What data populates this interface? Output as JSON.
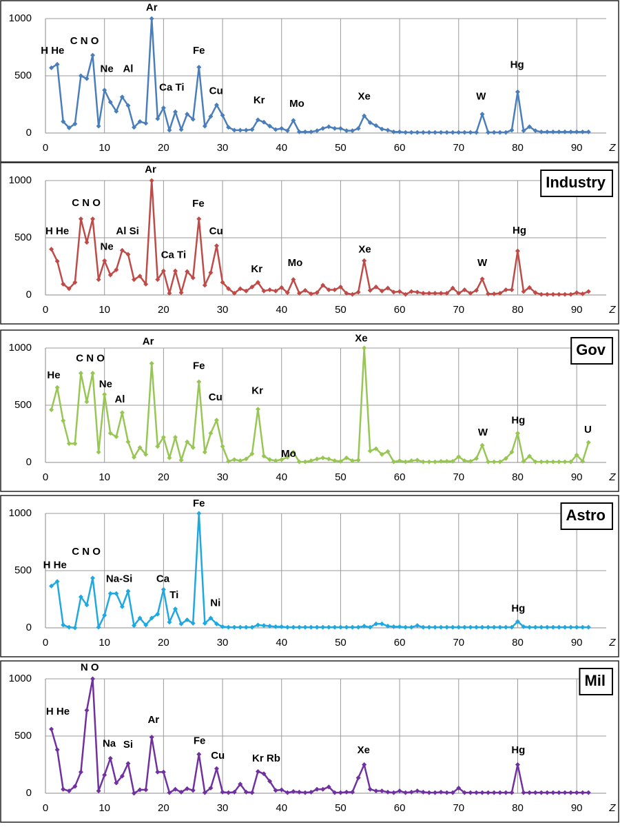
{
  "chart_data": [
    {
      "type": "line",
      "color": "#4a7ebb",
      "xlabel": "Z",
      "xlim": [
        0,
        95
      ],
      "xticks": [
        0,
        10,
        20,
        30,
        40,
        50,
        60,
        70,
        80,
        90
      ],
      "ylim": [
        0,
        1000
      ],
      "yticks": [
        0,
        500,
        1000
      ],
      "grid": true,
      "x": [
        1,
        2,
        3,
        4,
        5,
        6,
        7,
        8,
        9,
        10,
        11,
        12,
        13,
        14,
        15,
        16,
        17,
        18,
        19,
        20,
        21,
        22,
        23,
        24,
        25,
        26,
        27,
        28,
        29,
        30,
        31,
        32,
        33,
        34,
        35,
        36,
        37,
        38,
        39,
        40,
        41,
        42,
        43,
        44,
        45,
        46,
        47,
        48,
        49,
        50,
        51,
        52,
        53,
        54,
        55,
        56,
        57,
        58,
        59,
        60,
        61,
        62,
        63,
        64,
        65,
        66,
        67,
        68,
        69,
        70,
        71,
        72,
        73,
        74,
        75,
        76,
        77,
        78,
        79,
        80,
        81,
        82,
        83,
        84,
        85,
        86,
        87,
        88,
        89,
        90,
        91,
        92
      ],
      "values": [
        570,
        600,
        100,
        45,
        80,
        500,
        475,
        680,
        60,
        375,
        270,
        190,
        315,
        240,
        50,
        100,
        85,
        1000,
        125,
        220,
        25,
        185,
        30,
        165,
        120,
        575,
        60,
        145,
        245,
        155,
        50,
        25,
        25,
        25,
        30,
        115,
        95,
        60,
        30,
        40,
        20,
        110,
        10,
        10,
        10,
        20,
        40,
        55,
        40,
        40,
        20,
        20,
        40,
        150,
        90,
        65,
        35,
        25,
        10,
        10,
        5,
        5,
        5,
        5,
        5,
        5,
        5,
        5,
        5,
        5,
        5,
        5,
        5,
        165,
        5,
        5,
        5,
        5,
        25,
        360,
        20,
        55,
        20,
        10,
        10,
        10,
        10,
        10,
        10,
        10,
        10,
        10
      ],
      "annotations": [
        {
          "text": "H He",
          "x": 1.2,
          "y": 716
        },
        {
          "text": "C N O",
          "x": 6.6,
          "y": 802
        },
        {
          "text": "Ar",
          "x": 18,
          "y": 1093
        },
        {
          "text": "Ne",
          "x": 10.4,
          "y": 556
        },
        {
          "text": "Al",
          "x": 14,
          "y": 556
        },
        {
          "text": "Fe",
          "x": 26,
          "y": 716
        },
        {
          "text": "Ca Ti",
          "x": 21.4,
          "y": 395
        },
        {
          "text": "Cu",
          "x": 28.9,
          "y": 364
        },
        {
          "text": "Kr",
          "x": 36.2,
          "y": 284
        },
        {
          "text": "Mo",
          "x": 42.6,
          "y": 253
        },
        {
          "text": "Xe",
          "x": 54,
          "y": 315
        },
        {
          "text": "W",
          "x": 73.8,
          "y": 315
        },
        {
          "text": "Hg",
          "x": 79.9,
          "y": 593
        }
      ]
    },
    {
      "type": "line",
      "title": "Industry",
      "color": "#be4b48",
      "xlabel": "Z",
      "xlim": [
        0,
        95
      ],
      "xticks": [
        0,
        10,
        20,
        30,
        40,
        50,
        60,
        70,
        80,
        90
      ],
      "ylim": [
        0,
        1000
      ],
      "yticks": [
        0,
        500,
        1000
      ],
      "grid": true,
      "x": [
        1,
        2,
        3,
        4,
        5,
        6,
        7,
        8,
        9,
        10,
        11,
        12,
        13,
        14,
        15,
        16,
        17,
        18,
        19,
        20,
        21,
        22,
        23,
        24,
        25,
        26,
        27,
        28,
        29,
        30,
        31,
        32,
        33,
        34,
        35,
        36,
        37,
        38,
        39,
        40,
        41,
        42,
        43,
        44,
        45,
        46,
        47,
        48,
        49,
        50,
        51,
        52,
        53,
        54,
        55,
        56,
        57,
        58,
        59,
        60,
        61,
        62,
        63,
        64,
        65,
        66,
        67,
        68,
        69,
        70,
        71,
        72,
        73,
        74,
        75,
        76,
        77,
        78,
        79,
        80,
        81,
        82,
        83,
        84,
        85,
        86,
        87,
        88,
        89,
        90,
        91,
        92
      ],
      "values": [
        400,
        295,
        95,
        55,
        110,
        665,
        460,
        665,
        135,
        300,
        175,
        220,
        390,
        355,
        135,
        165,
        95,
        1000,
        135,
        210,
        15,
        210,
        20,
        205,
        150,
        665,
        85,
        195,
        430,
        110,
        55,
        15,
        55,
        35,
        70,
        110,
        35,
        45,
        35,
        65,
        20,
        135,
        15,
        40,
        10,
        20,
        85,
        45,
        45,
        70,
        15,
        5,
        25,
        300,
        40,
        70,
        35,
        60,
        25,
        30,
        5,
        30,
        25,
        15,
        15,
        15,
        15,
        15,
        60,
        15,
        45,
        15,
        40,
        140,
        10,
        10,
        15,
        45,
        45,
        385,
        30,
        65,
        20,
        5,
        5,
        5,
        5,
        5,
        5,
        20,
        10,
        30
      ],
      "annotations": [
        {
          "text": "H He",
          "x": 2,
          "y": 553
        },
        {
          "text": "C N O",
          "x": 6.9,
          "y": 800
        },
        {
          "text": "Ar",
          "x": 17.8,
          "y": 1094
        },
        {
          "text": "Al Si",
          "x": 13.9,
          "y": 553
        },
        {
          "text": "Ne",
          "x": 10.4,
          "y": 418
        },
        {
          "text": "Fe",
          "x": 25.9,
          "y": 794
        },
        {
          "text": "Cu",
          "x": 28.9,
          "y": 553
        },
        {
          "text": "Ca Ti",
          "x": 21.7,
          "y": 347
        },
        {
          "text": "Kr",
          "x": 35.8,
          "y": 224
        },
        {
          "text": "Mo",
          "x": 42.3,
          "y": 276
        },
        {
          "text": "Xe",
          "x": 54.1,
          "y": 394
        },
        {
          "text": "W",
          "x": 74,
          "y": 276
        },
        {
          "text": "Hg",
          "x": 80.3,
          "y": 559
        }
      ]
    },
    {
      "type": "line",
      "title": "Gov",
      "color": "#98c654",
      "xlabel": "Z",
      "xlim": [
        0,
        95
      ],
      "xticks": [
        0,
        10,
        20,
        30,
        40,
        50,
        60,
        70,
        80,
        90
      ],
      "ylim": [
        0,
        1000
      ],
      "yticks": [
        0,
        500,
        1000
      ],
      "grid": true,
      "x": [
        1,
        2,
        3,
        4,
        5,
        6,
        7,
        8,
        9,
        10,
        11,
        12,
        13,
        14,
        15,
        16,
        17,
        18,
        19,
        20,
        21,
        22,
        23,
        24,
        25,
        26,
        27,
        28,
        29,
        30,
        31,
        32,
        33,
        34,
        35,
        36,
        37,
        38,
        39,
        40,
        41,
        42,
        43,
        44,
        45,
        46,
        47,
        48,
        49,
        50,
        51,
        52,
        53,
        54,
        55,
        56,
        57,
        58,
        59,
        60,
        61,
        62,
        63,
        64,
        65,
        66,
        67,
        68,
        69,
        70,
        71,
        72,
        73,
        74,
        75,
        76,
        77,
        78,
        79,
        80,
        81,
        82,
        83,
        84,
        85,
        86,
        87,
        88,
        89,
        90,
        91,
        92
      ],
      "values": [
        460,
        655,
        365,
        165,
        165,
        780,
        530,
        780,
        90,
        595,
        255,
        225,
        435,
        180,
        45,
        130,
        70,
        865,
        140,
        220,
        40,
        220,
        20,
        180,
        130,
        705,
        90,
        255,
        370,
        140,
        10,
        25,
        15,
        30,
        75,
        465,
        55,
        25,
        15,
        25,
        45,
        90,
        5,
        5,
        15,
        30,
        40,
        30,
        15,
        10,
        40,
        15,
        20,
        1000,
        100,
        120,
        70,
        95,
        5,
        15,
        5,
        15,
        20,
        5,
        5,
        5,
        10,
        10,
        10,
        50,
        15,
        10,
        35,
        150,
        5,
        5,
        5,
        35,
        90,
        255,
        10,
        55,
        5,
        5,
        5,
        5,
        5,
        5,
        5,
        65,
        10,
        175
      ],
      "annotations": [
        {
          "text": "He",
          "x": 1.4,
          "y": 759
        },
        {
          "text": "C N O",
          "x": 7.6,
          "y": 906
        },
        {
          "text": "Ar",
          "x": 17.4,
          "y": 1053
        },
        {
          "text": "Ne",
          "x": 10.2,
          "y": 682
        },
        {
          "text": "Al",
          "x": 12.6,
          "y": 547
        },
        {
          "text": "Fe",
          "x": 26,
          "y": 841
        },
        {
          "text": "Cu",
          "x": 28.8,
          "y": 565
        },
        {
          "text": "Kr",
          "x": 35.9,
          "y": 624
        },
        {
          "text": "Mo",
          "x": 41.2,
          "y": 71
        },
        {
          "text": "Xe",
          "x": 53.5,
          "y": 1082
        },
        {
          "text": "W",
          "x": 74.1,
          "y": 259
        },
        {
          "text": "Hg",
          "x": 80.1,
          "y": 365
        },
        {
          "text": "U",
          "x": 91.9,
          "y": 282
        }
      ]
    },
    {
      "type": "line",
      "title": "Astro",
      "color": "#1fa8e0",
      "xlabel": "Z",
      "xlim": [
        0,
        95
      ],
      "xticks": [
        0,
        10,
        20,
        30,
        40,
        50,
        60,
        70,
        80,
        90
      ],
      "ylim": [
        0,
        1000
      ],
      "yticks": [
        0,
        500,
        1000
      ],
      "grid": true,
      "x": [
        1,
        2,
        3,
        4,
        5,
        6,
        7,
        8,
        9,
        10,
        11,
        12,
        13,
        14,
        15,
        16,
        17,
        18,
        19,
        20,
        21,
        22,
        23,
        24,
        25,
        26,
        27,
        28,
        29,
        30,
        31,
        32,
        33,
        34,
        35,
        36,
        37,
        38,
        39,
        40,
        41,
        42,
        43,
        44,
        45,
        46,
        47,
        48,
        49,
        50,
        51,
        52,
        53,
        54,
        55,
        56,
        57,
        58,
        59,
        60,
        61,
        62,
        63,
        64,
        65,
        66,
        67,
        68,
        69,
        70,
        71,
        72,
        73,
        74,
        75,
        76,
        77,
        78,
        79,
        80,
        81,
        82,
        83,
        84,
        85,
        86,
        87,
        88,
        89,
        90,
        91,
        92
      ],
      "values": [
        365,
        405,
        25,
        5,
        0,
        270,
        200,
        435,
        5,
        110,
        300,
        300,
        185,
        320,
        20,
        85,
        25,
        85,
        120,
        335,
        50,
        165,
        35,
        70,
        40,
        1000,
        40,
        85,
        35,
        10,
        5,
        5,
        5,
        5,
        5,
        25,
        20,
        15,
        10,
        10,
        5,
        5,
        5,
        5,
        5,
        5,
        5,
        5,
        5,
        5,
        5,
        5,
        5,
        15,
        5,
        35,
        35,
        15,
        10,
        10,
        5,
        5,
        20,
        5,
        5,
        5,
        5,
        5,
        5,
        5,
        5,
        5,
        5,
        5,
        5,
        5,
        5,
        5,
        5,
        55,
        10,
        5,
        5,
        5,
        5,
        5,
        5,
        5,
        5,
        5,
        5,
        5
      ],
      "annotations": [
        {
          "text": "Fe",
          "x": 26,
          "y": 1083
        },
        {
          "text": "C N O",
          "x": 6.9,
          "y": 663
        },
        {
          "text": "H He",
          "x": 1.6,
          "y": 544
        },
        {
          "text": "Na-Si",
          "x": 12.5,
          "y": 426
        },
        {
          "text": "Ca",
          "x": 19.9,
          "y": 426
        },
        {
          "text": "Ti",
          "x": 21.8,
          "y": 284
        },
        {
          "text": "Ni",
          "x": 28.8,
          "y": 213
        },
        {
          "text": "Hg",
          "x": 80.1,
          "y": 166
        }
      ]
    },
    {
      "type": "line",
      "title": "Mil",
      "color": "#7030a0",
      "xlabel": "Z",
      "xlim": [
        0,
        95
      ],
      "xticks": [
        0,
        10,
        20,
        30,
        40,
        50,
        60,
        70,
        80,
        90
      ],
      "ylim": [
        0,
        1000
      ],
      "yticks": [
        0,
        500,
        1000
      ],
      "grid": true,
      "x": [
        1,
        2,
        3,
        4,
        5,
        6,
        7,
        8,
        9,
        10,
        11,
        12,
        13,
        14,
        15,
        16,
        17,
        18,
        19,
        20,
        21,
        22,
        23,
        24,
        25,
        26,
        27,
        28,
        29,
        30,
        31,
        32,
        33,
        34,
        35,
        36,
        37,
        38,
        39,
        40,
        41,
        42,
        43,
        44,
        45,
        46,
        47,
        48,
        49,
        50,
        51,
        52,
        53,
        54,
        55,
        56,
        57,
        58,
        59,
        60,
        61,
        62,
        63,
        64,
        65,
        66,
        67,
        68,
        69,
        70,
        71,
        72,
        73,
        74,
        75,
        76,
        77,
        78,
        79,
        80,
        81,
        82,
        83,
        84,
        85,
        86,
        87,
        88,
        89,
        90,
        91,
        92
      ],
      "values": [
        560,
        380,
        35,
        20,
        60,
        185,
        725,
        1000,
        20,
        160,
        305,
        90,
        150,
        260,
        0,
        30,
        30,
        490,
        185,
        185,
        5,
        35,
        10,
        40,
        25,
        340,
        5,
        45,
        215,
        10,
        5,
        10,
        80,
        10,
        5,
        190,
        170,
        105,
        25,
        30,
        5,
        15,
        10,
        5,
        10,
        35,
        35,
        55,
        5,
        5,
        10,
        10,
        135,
        250,
        35,
        20,
        20,
        10,
        5,
        20,
        5,
        10,
        20,
        10,
        5,
        5,
        10,
        5,
        5,
        45,
        5,
        5,
        5,
        5,
        5,
        5,
        5,
        5,
        5,
        250,
        5,
        5,
        5,
        5,
        5,
        5,
        5,
        5,
        5,
        5,
        5,
        5
      ],
      "annotations": [
        {
          "text": "N O",
          "x": 7.5,
          "y": 1095
        },
        {
          "text": "H He",
          "x": 2.1,
          "y": 710
        },
        {
          "text": "Na",
          "x": 10.8,
          "y": 432
        },
        {
          "text": "Si",
          "x": 14,
          "y": 420
        },
        {
          "text": "Ar",
          "x": 18.3,
          "y": 639
        },
        {
          "text": "Fe",
          "x": 26.1,
          "y": 456
        },
        {
          "text": "Cu",
          "x": 29.2,
          "y": 325
        },
        {
          "text": "Kr Rb",
          "x": 37.4,
          "y": 302
        },
        {
          "text": "Xe",
          "x": 53.9,
          "y": 373
        },
        {
          "text": "Hg",
          "x": 80.1,
          "y": 373
        }
      ]
    }
  ]
}
